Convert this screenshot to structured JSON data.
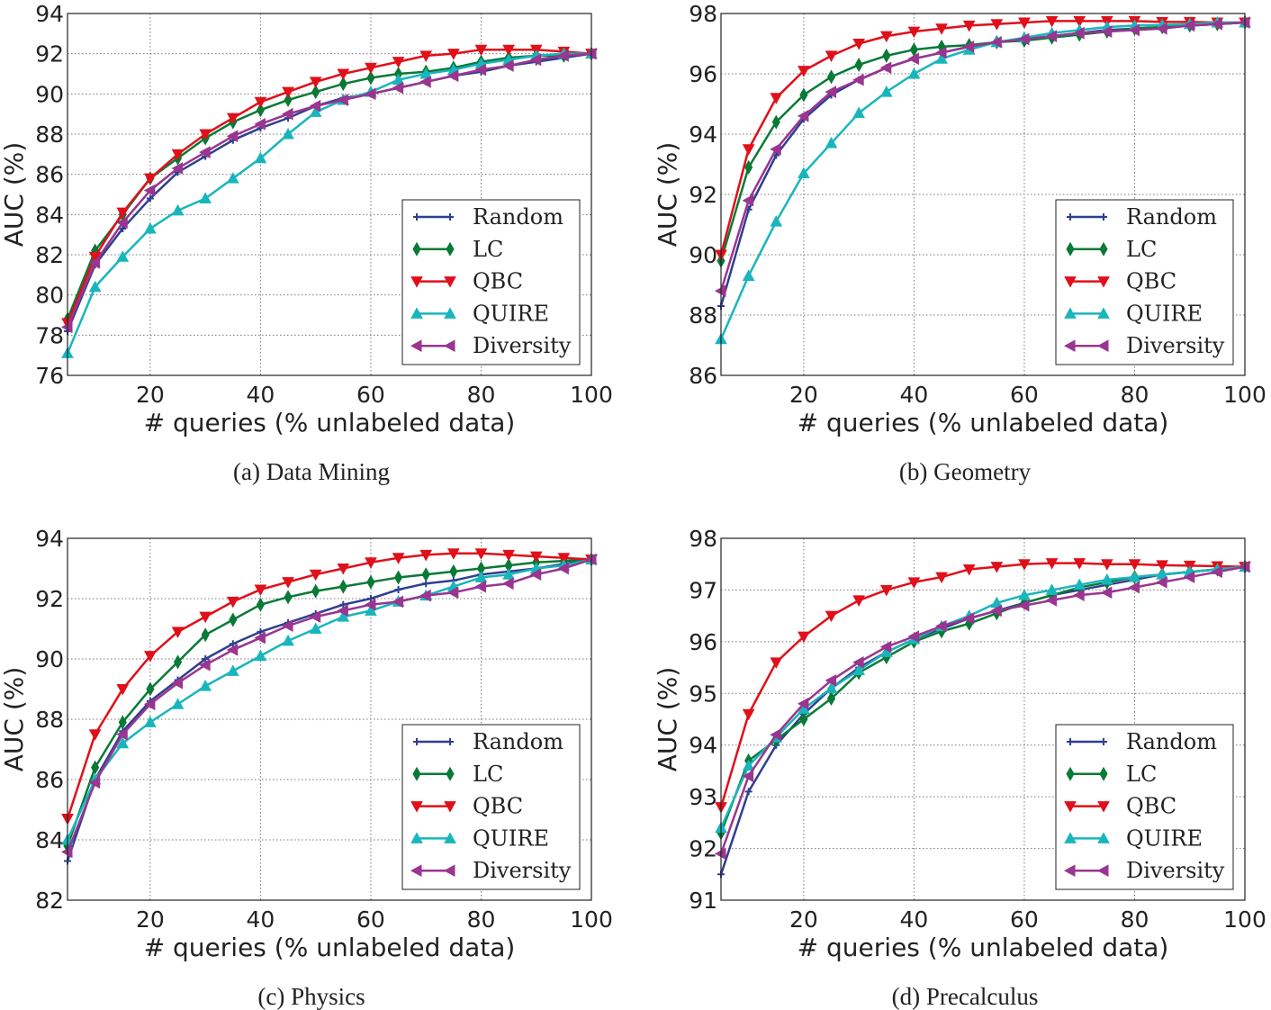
{
  "chart_data": [
    {
      "type": "line",
      "title": "(a) Data Mining",
      "xlabel": "# queries (% unlabeled data)",
      "ylabel": "AUC (%)",
      "xlim": [
        5,
        100
      ],
      "ylim": [
        76,
        94
      ],
      "xticks": [
        20,
        40,
        60,
        80,
        100
      ],
      "yticks": [
        76,
        78,
        80,
        82,
        84,
        86,
        88,
        90,
        92,
        94
      ],
      "grid": true,
      "legend": "lower-right",
      "x": [
        5,
        10,
        15,
        20,
        25,
        30,
        35,
        40,
        45,
        50,
        55,
        60,
        65,
        70,
        75,
        80,
        85,
        90,
        95,
        100
      ],
      "series": [
        {
          "name": "Random",
          "values": [
            78.2,
            81.5,
            83.3,
            84.8,
            86.1,
            86.9,
            87.7,
            88.3,
            88.8,
            89.4,
            89.8,
            90.0,
            90.3,
            90.6,
            90.9,
            91.1,
            91.4,
            91.6,
            91.8,
            92.0
          ]
        },
        {
          "name": "LC",
          "values": [
            78.8,
            82.2,
            84.0,
            85.8,
            86.8,
            87.8,
            88.6,
            89.2,
            89.7,
            90.1,
            90.5,
            90.8,
            91.0,
            91.1,
            91.3,
            91.6,
            91.8,
            91.9,
            91.9,
            92.0
          ]
        },
        {
          "name": "QBC",
          "values": [
            78.6,
            81.9,
            84.1,
            85.8,
            87.0,
            88.0,
            88.8,
            89.6,
            90.1,
            90.6,
            91.0,
            91.3,
            91.6,
            91.9,
            92.0,
            92.2,
            92.2,
            92.2,
            92.1,
            92.0
          ]
        },
        {
          "name": "QUIRE",
          "values": [
            77.1,
            80.4,
            81.9,
            83.3,
            84.2,
            84.8,
            85.8,
            86.8,
            88.0,
            89.1,
            89.7,
            90.1,
            90.7,
            91.0,
            91.2,
            91.5,
            91.7,
            91.9,
            92.0,
            92.0
          ]
        },
        {
          "name": "Diversity",
          "values": [
            78.4,
            81.6,
            83.6,
            85.2,
            86.3,
            87.1,
            87.9,
            88.5,
            89.0,
            89.4,
            89.7,
            90.0,
            90.3,
            90.6,
            90.9,
            91.2,
            91.4,
            91.7,
            91.9,
            92.0
          ]
        }
      ]
    },
    {
      "type": "line",
      "title": "(b) Geometry",
      "xlabel": "# queries (% unlabeled data)",
      "ylabel": "AUC (%)",
      "xlim": [
        5,
        100
      ],
      "ylim": [
        86,
        98
      ],
      "xticks": [
        20,
        40,
        60,
        80,
        100
      ],
      "yticks": [
        86,
        88,
        90,
        92,
        94,
        96,
        98
      ],
      "grid": true,
      "legend": "lower-right",
      "x": [
        5,
        10,
        15,
        20,
        25,
        30,
        35,
        40,
        45,
        50,
        55,
        60,
        65,
        70,
        75,
        80,
        85,
        90,
        95,
        100
      ],
      "series": [
        {
          "name": "Random",
          "values": [
            88.3,
            91.5,
            93.3,
            94.5,
            95.3,
            95.8,
            96.2,
            96.5,
            96.7,
            96.9,
            97.05,
            97.15,
            97.25,
            97.35,
            97.45,
            97.5,
            97.55,
            97.6,
            97.65,
            97.7
          ]
        },
        {
          "name": "LC",
          "values": [
            89.8,
            92.9,
            94.4,
            95.3,
            95.9,
            96.3,
            96.6,
            96.8,
            96.9,
            96.95,
            97.05,
            97.1,
            97.2,
            97.3,
            97.4,
            97.5,
            97.55,
            97.6,
            97.65,
            97.7
          ]
        },
        {
          "name": "QBC",
          "values": [
            90.0,
            93.5,
            95.2,
            96.1,
            96.6,
            97.0,
            97.25,
            97.4,
            97.5,
            97.6,
            97.65,
            97.7,
            97.75,
            97.75,
            97.75,
            97.75,
            97.72,
            97.72,
            97.7,
            97.7
          ]
        },
        {
          "name": "QUIRE",
          "values": [
            87.2,
            89.3,
            91.1,
            92.7,
            93.7,
            94.7,
            95.4,
            96.0,
            96.5,
            96.8,
            97.05,
            97.2,
            97.35,
            97.45,
            97.55,
            97.6,
            97.62,
            97.65,
            97.7,
            97.7
          ]
        },
        {
          "name": "Diversity",
          "values": [
            88.8,
            91.8,
            93.5,
            94.6,
            95.4,
            95.8,
            96.2,
            96.5,
            96.7,
            96.9,
            97.05,
            97.15,
            97.25,
            97.35,
            97.4,
            97.45,
            97.5,
            97.6,
            97.65,
            97.7
          ]
        }
      ]
    },
    {
      "type": "line",
      "title": "(c) Physics",
      "xlabel": "# queries (% unlabeled data)",
      "ylabel": "AUC (%)",
      "xlim": [
        5,
        100
      ],
      "ylim": [
        82,
        94
      ],
      "xticks": [
        20,
        40,
        60,
        80,
        100
      ],
      "yticks": [
        82,
        84,
        86,
        88,
        90,
        92,
        94
      ],
      "grid": true,
      "legend": "lower-right",
      "x": [
        5,
        10,
        15,
        20,
        25,
        30,
        35,
        40,
        45,
        50,
        55,
        60,
        65,
        70,
        75,
        80,
        85,
        90,
        95,
        100
      ],
      "series": [
        {
          "name": "Random",
          "values": [
            83.3,
            86.0,
            87.6,
            88.6,
            89.3,
            90.0,
            90.5,
            90.9,
            91.2,
            91.5,
            91.8,
            92.0,
            92.3,
            92.5,
            92.6,
            92.8,
            92.9,
            93.0,
            93.15,
            93.3
          ]
        },
        {
          "name": "LC",
          "values": [
            83.8,
            86.4,
            87.9,
            89.0,
            89.9,
            90.8,
            91.3,
            91.8,
            92.05,
            92.25,
            92.4,
            92.55,
            92.7,
            92.8,
            92.9,
            93.0,
            93.1,
            93.2,
            93.25,
            93.3
          ]
        },
        {
          "name": "QBC",
          "values": [
            84.7,
            87.5,
            89.0,
            90.1,
            90.9,
            91.4,
            91.9,
            92.3,
            92.55,
            92.8,
            93.0,
            93.2,
            93.35,
            93.45,
            93.5,
            93.5,
            93.45,
            93.4,
            93.35,
            93.3
          ]
        },
        {
          "name": "QUIRE",
          "values": [
            84.0,
            86.0,
            87.2,
            87.9,
            88.5,
            89.1,
            89.6,
            90.1,
            90.6,
            91.0,
            91.4,
            91.6,
            91.9,
            92.1,
            92.4,
            92.7,
            92.8,
            93.0,
            93.1,
            93.3
          ]
        },
        {
          "name": "Diversity",
          "values": [
            83.6,
            85.9,
            87.5,
            88.5,
            89.2,
            89.8,
            90.3,
            90.7,
            91.1,
            91.4,
            91.6,
            91.8,
            91.9,
            92.1,
            92.2,
            92.4,
            92.5,
            92.8,
            93.0,
            93.3
          ]
        }
      ]
    },
    {
      "type": "line",
      "title": "(d) Precalculus",
      "xlabel": "# queries (% unlabeled data)",
      "ylabel": "AUC (%)",
      "xlim": [
        5,
        100
      ],
      "ylim": [
        91,
        98
      ],
      "xticks": [
        20,
        40,
        60,
        80,
        100
      ],
      "yticks": [
        91,
        92,
        93,
        94,
        95,
        96,
        97,
        98
      ],
      "grid": true,
      "legend": "lower-right",
      "x": [
        5,
        10,
        15,
        20,
        25,
        30,
        35,
        40,
        45,
        50,
        55,
        60,
        65,
        70,
        75,
        80,
        85,
        90,
        95,
        100
      ],
      "series": [
        {
          "name": "Random",
          "values": [
            91.5,
            93.1,
            94.0,
            94.6,
            95.1,
            95.5,
            95.8,
            96.05,
            96.25,
            96.45,
            96.6,
            96.75,
            96.9,
            97.0,
            97.1,
            97.2,
            97.3,
            97.35,
            97.4,
            97.45
          ]
        },
        {
          "name": "LC",
          "values": [
            92.3,
            93.7,
            94.1,
            94.5,
            94.9,
            95.4,
            95.7,
            96.0,
            96.2,
            96.35,
            96.55,
            96.75,
            96.9,
            97.05,
            97.15,
            97.25,
            97.3,
            97.35,
            97.4,
            97.45
          ]
        },
        {
          "name": "QBC",
          "values": [
            92.8,
            94.6,
            95.6,
            96.1,
            96.5,
            96.8,
            97.0,
            97.15,
            97.25,
            97.4,
            97.45,
            97.5,
            97.52,
            97.52,
            97.5,
            97.5,
            97.48,
            97.47,
            97.46,
            97.45
          ]
        },
        {
          "name": "QUIRE",
          "values": [
            92.4,
            93.6,
            94.15,
            94.7,
            95.1,
            95.45,
            95.8,
            96.05,
            96.3,
            96.5,
            96.75,
            96.9,
            97.0,
            97.1,
            97.2,
            97.25,
            97.3,
            97.35,
            97.4,
            97.45
          ]
        },
        {
          "name": "Diversity",
          "values": [
            91.9,
            93.4,
            94.2,
            94.8,
            95.25,
            95.6,
            95.9,
            96.1,
            96.3,
            96.45,
            96.6,
            96.7,
            96.8,
            96.9,
            96.95,
            97.05,
            97.15,
            97.25,
            97.35,
            97.45
          ]
        }
      ]
    }
  ],
  "colors": {
    "Random": "#2f3f8f",
    "LC": "#087a36",
    "QBC": "#e0101a",
    "QUIRE": "#18b6bc",
    "Diversity": "#9a3590"
  },
  "markers": {
    "Random": "plus",
    "LC": "diamond",
    "QBC": "triangle-down",
    "QUIRE": "triangle-up",
    "Diversity": "triangle-left"
  }
}
